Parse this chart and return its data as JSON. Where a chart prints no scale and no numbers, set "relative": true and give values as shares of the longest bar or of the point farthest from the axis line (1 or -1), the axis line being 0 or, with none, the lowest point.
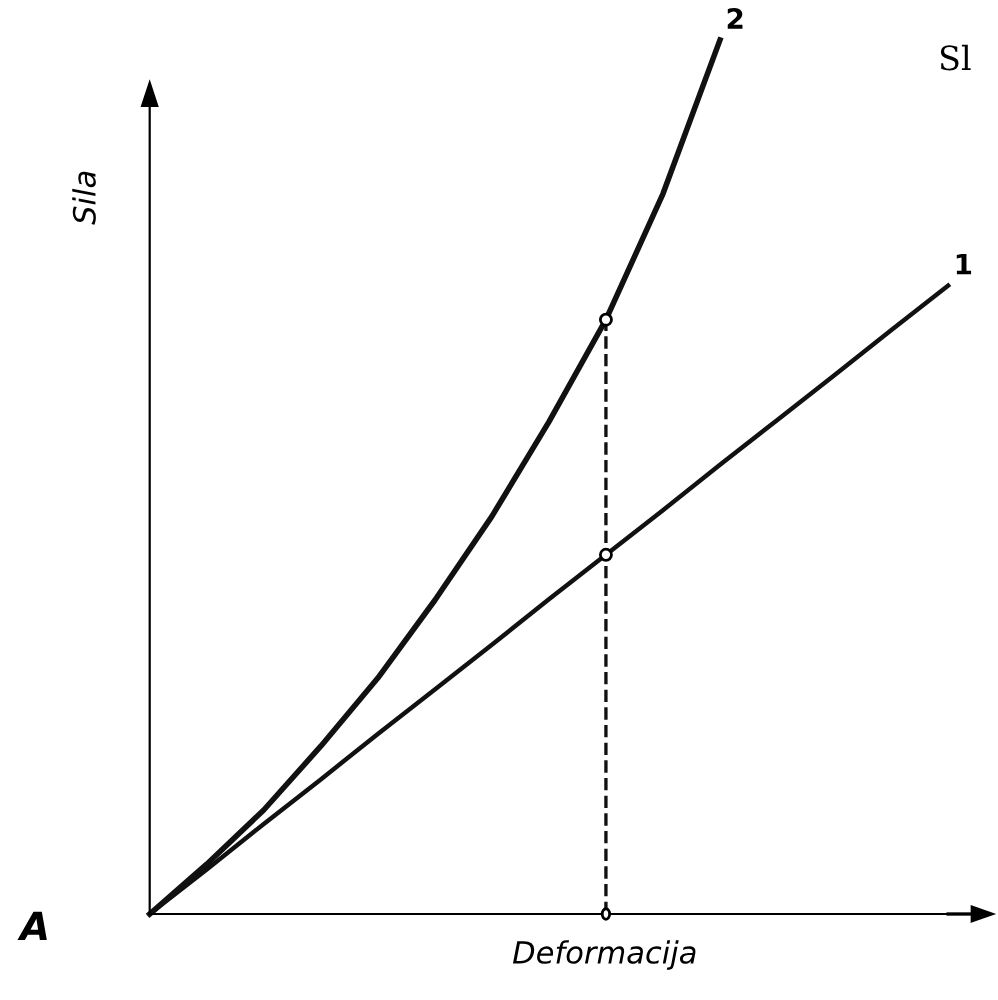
{
  "chart_data": {
    "type": "line",
    "relative": true,
    "xlabel": "Deformacija",
    "ylabel": "Sila",
    "annotations": [
      "A",
      "Sl"
    ],
    "categories": [
      null,
      null,
      null,
      null,
      null,
      null,
      null,
      null,
      null,
      null,
      null,
      null,
      null,
      null,
      null
    ],
    "series": [
      {
        "name": "1",
        "color": "#111111",
        "values": [
          0,
          0.051,
          0.103,
          0.154,
          0.206,
          0.257,
          0.308,
          0.36,
          0.411,
          0.462,
          0.514,
          0.565,
          0.616,
          0.668,
          0.719
        ]
      },
      {
        "name": "2",
        "color": "#111111",
        "values": [
          0,
          0.057,
          0.119,
          0.192,
          0.27,
          0.359,
          0.455,
          0.563,
          0.68,
          0.824,
          1.0,
          null,
          null,
          null,
          null
        ]
      }
    ],
    "grid": false,
    "legend": false,
    "marker": "none",
    "line_style": "solid"
  }
}
